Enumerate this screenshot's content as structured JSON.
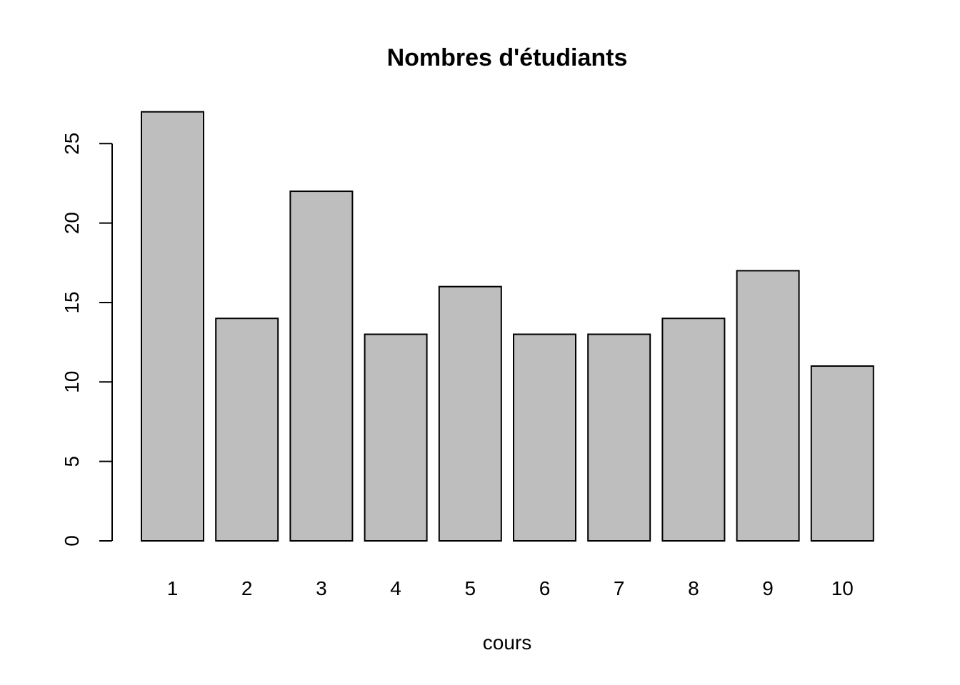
{
  "chart_data": {
    "type": "bar",
    "title": "Nombres d'étudiants",
    "xlabel": "cours",
    "ylabel": "",
    "categories": [
      "1",
      "2",
      "3",
      "4",
      "5",
      "6",
      "7",
      "8",
      "9",
      "10"
    ],
    "values": [
      27,
      14,
      22,
      13,
      16,
      13,
      13,
      14,
      17,
      11
    ],
    "yticks": [
      0,
      5,
      10,
      15,
      20,
      25
    ],
    "ylim": [
      0,
      27
    ],
    "bar_color": "#bebebe",
    "grid": false,
    "legend": "none"
  }
}
